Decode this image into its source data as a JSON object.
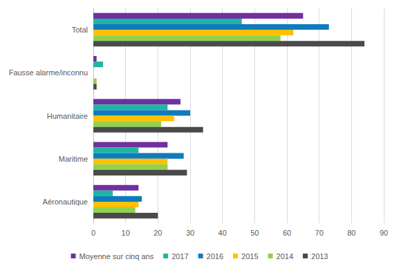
{
  "chart_data": {
    "type": "bar",
    "orientation": "horizontal",
    "categories": [
      "Total",
      "Fausse alarme/inconnu",
      "Humanitaire",
      "Maritime",
      "Aéronautique"
    ],
    "series": [
      {
        "name": "Moyenne sur cinq ans",
        "color": "#7030a0",
        "values": [
          65,
          1,
          27,
          23,
          14
        ]
      },
      {
        "name": "2017",
        "color": "#1fb5a3",
        "values": [
          46,
          3,
          23,
          14,
          6
        ]
      },
      {
        "name": "2016",
        "color": "#0f7bbd",
        "values": [
          73,
          0,
          30,
          28,
          15
        ]
      },
      {
        "name": "2015",
        "color": "#ffc000",
        "values": [
          62,
          0,
          25,
          23,
          14
        ]
      },
      {
        "name": "2014",
        "color": "#92d050",
        "values": [
          58,
          1,
          21,
          23,
          13
        ]
      },
      {
        "name": "2013",
        "color": "#4a4a4a",
        "values": [
          84,
          1,
          34,
          29,
          20
        ]
      }
    ],
    "xlim": [
      0,
      90
    ],
    "xticks": [
      0,
      10,
      20,
      30,
      40,
      50,
      60,
      70,
      80,
      90
    ],
    "grid": true,
    "legend": "bottom"
  }
}
